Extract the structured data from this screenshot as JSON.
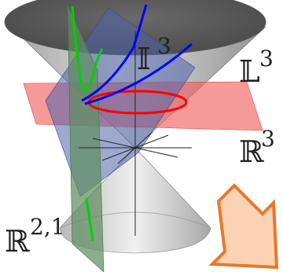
{
  "labels": {
    "hyperbolic_space": {
      "letter": "𝕀",
      "exponent": "3"
    },
    "lightcone": {
      "letter": "𝕃",
      "exponent": "3"
    },
    "euclidean_space": {
      "letter": "ℝ",
      "exponent": "3"
    },
    "minkowski_space": {
      "letter": "ℝ",
      "exponent": "2,1"
    }
  },
  "colors": {
    "cone_dark": "#5a5a5a",
    "cone_light": "#d8d8d8",
    "red_plane": "#f05a5a",
    "blue_plane": "#5a6aa8",
    "green_plane": "#6f9a6f",
    "green_curve": "#00d000",
    "blue_curve": "#0000ff",
    "red_circle": "#ff0000",
    "arrow_fill": "#fcd2b4",
    "arrow_stroke": "#e8782a",
    "axis": "#222222"
  }
}
